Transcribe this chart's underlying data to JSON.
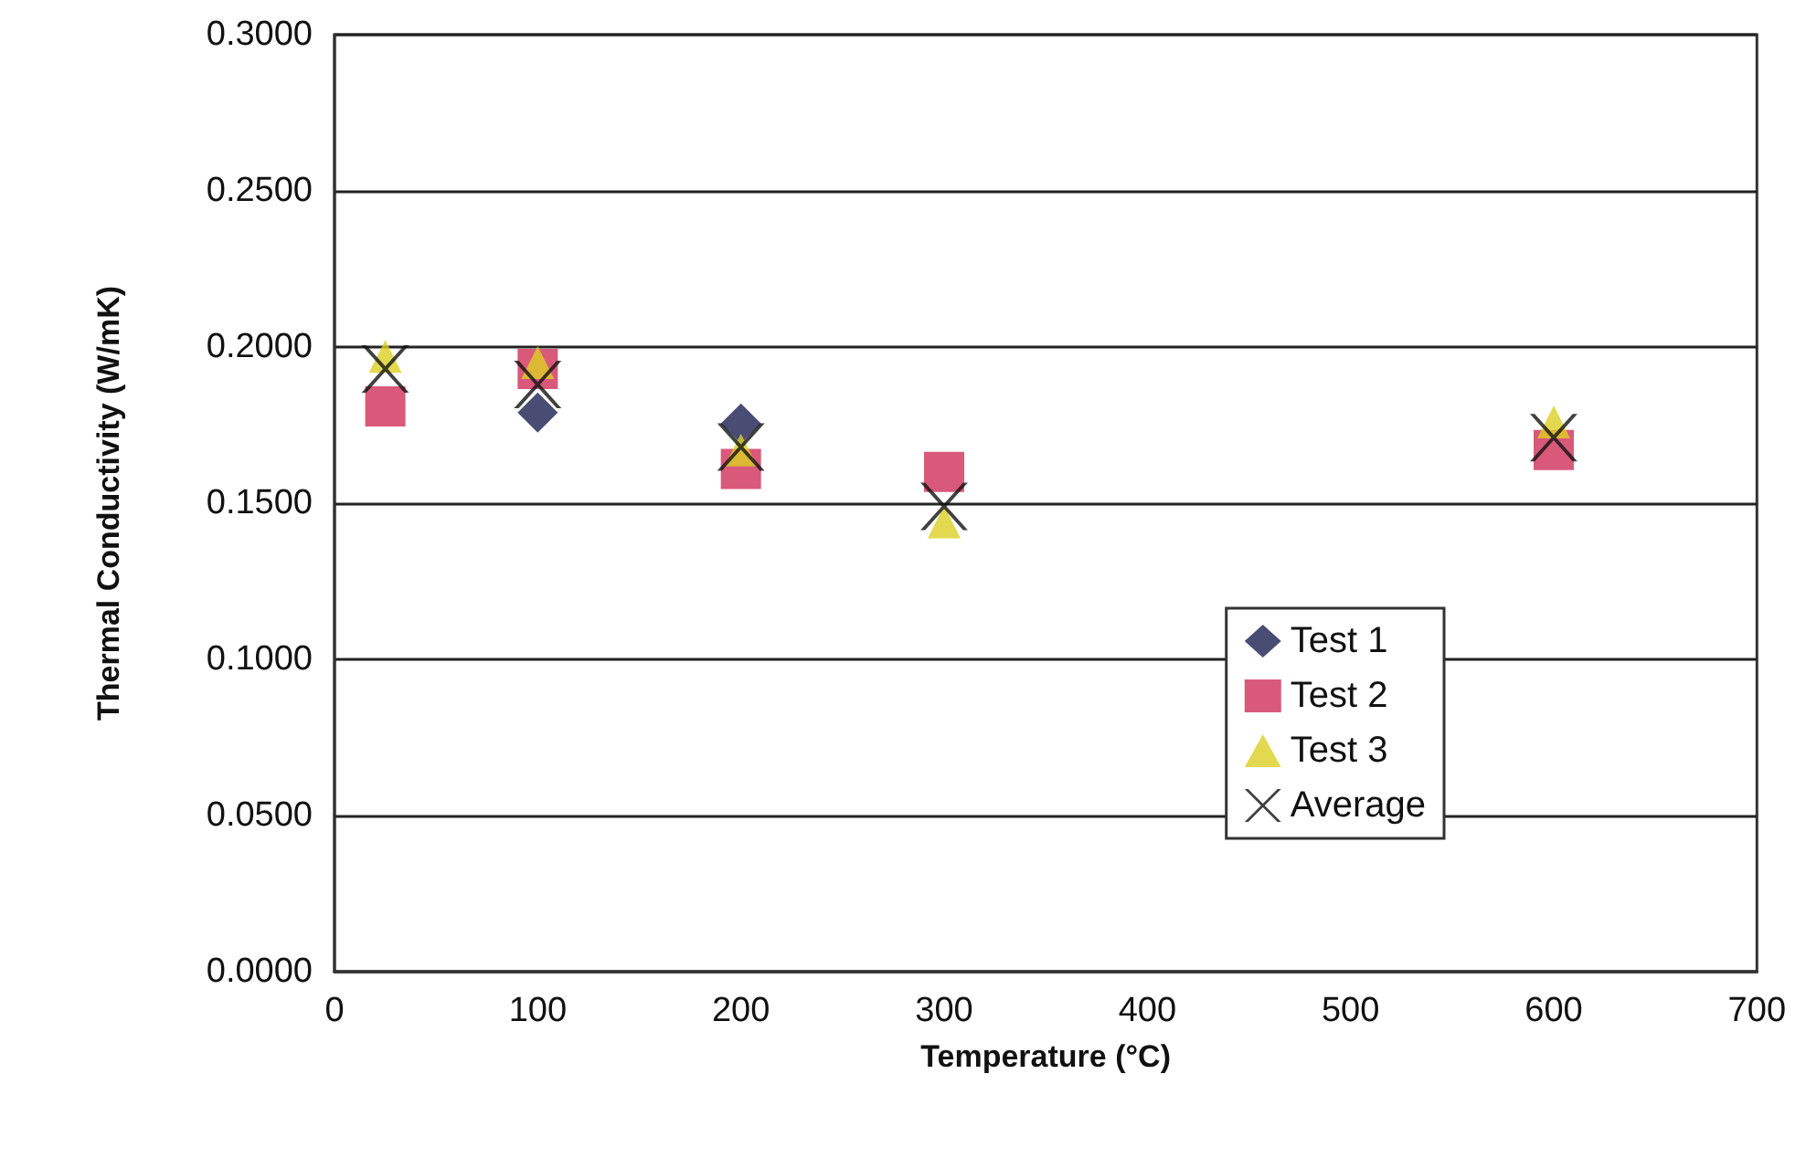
{
  "chart_data": {
    "type": "scatter",
    "xlabel": "Temperature (°C)",
    "ylabel": "Thermal Conductivity (W/mK)",
    "xlim": [
      0,
      700
    ],
    "xticks": [
      0,
      100,
      200,
      300,
      400,
      500,
      600,
      700
    ],
    "ylim": [
      0,
      0.3
    ],
    "yticks": [
      {
        "value": 0,
        "label": "0.0000"
      },
      {
        "value": 0.05,
        "label": "0.0500"
      },
      {
        "value": 0.1,
        "label": "0.1000"
      },
      {
        "value": 0.15,
        "label": "0.1500"
      },
      {
        "value": 0.2,
        "label": "0.2000"
      },
      {
        "value": 0.25,
        "label": "0.2500"
      },
      {
        "value": 0.3,
        "label": "0.3000"
      }
    ],
    "x": [
      25,
      100,
      200,
      300,
      600
    ],
    "grid": "y",
    "legend": "right",
    "series": [
      {
        "name": "Test 1",
        "color": "#1c2151",
        "marker": "diamond",
        "values": [
          null,
          0.179,
          0.1755,
          null,
          null
        ]
      },
      {
        "name": "Test 2",
        "color": "#d0305a",
        "marker": "square",
        "values": [
          0.181,
          0.193,
          0.161,
          0.16,
          0.167
        ]
      },
      {
        "name": "Test 3",
        "color": "#dcd024",
        "marker": "triangle",
        "values": [
          0.197,
          0.195,
          0.167,
          0.144,
          0.176
        ]
      },
      {
        "name": "Average",
        "color": "#111111",
        "marker": "cross",
        "values": [
          0.193,
          0.188,
          0.168,
          0.149,
          0.171
        ]
      }
    ]
  }
}
